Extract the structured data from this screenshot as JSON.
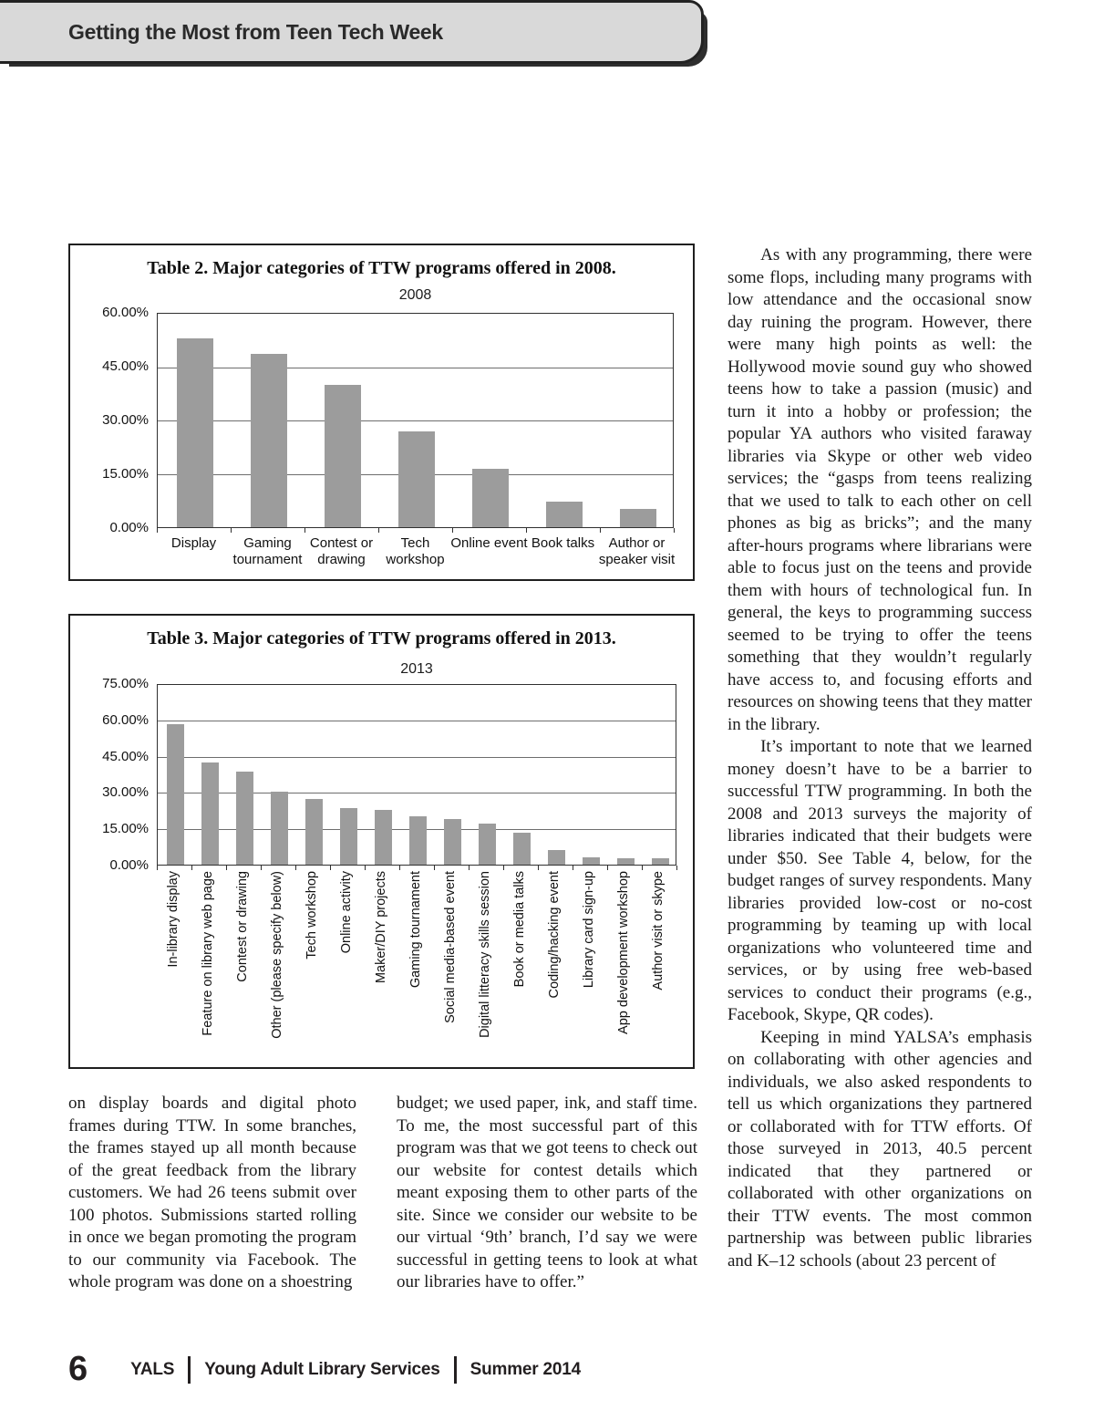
{
  "header": {
    "title": "Getting the Most from Teen Tech Week"
  },
  "colors": {
    "banner_fill": "#d9d9d9",
    "banner_border": "#222222",
    "bar_fill": "#9c9c9c",
    "text": "#1b1b1b"
  },
  "chart_data": [
    {
      "type": "bar",
      "caption": "Table 2. Major categories of TTW programs offered in 2008.",
      "title": "2008",
      "categories": [
        "Display",
        "Gaming tournament",
        "Contest or drawing",
        "Tech workshop",
        "Online event",
        "Book talks",
        "Author or speaker visit"
      ],
      "values": [
        53,
        48.8,
        40,
        27,
        16.4,
        7.2,
        5
      ],
      "ylim": [
        0,
        60
      ],
      "ytick_step": 15,
      "ytick_format": "0.00%",
      "grid": true,
      "legend": false,
      "bar_color": "#9c9c9c",
      "xlabel": "",
      "ylabel": ""
    },
    {
      "type": "bar",
      "caption": "Table 3. Major categories of TTW programs offered in 2013.",
      "title": "2013",
      "categories": [
        "In-library display",
        "Feature on library web page",
        "Contest or drawing",
        "Other (please specify below)",
        "Tech workshop",
        "Online activity",
        "Maker/DIY projects",
        "Gaming tournament",
        "Social media-based event",
        "Digital litteracy skills session",
        "Book or media talks",
        "Coding/hacking event",
        "Library card sign-up",
        "App development workshop",
        "Author visit or skype"
      ],
      "values": [
        58.5,
        42.5,
        39,
        30.5,
        27.5,
        23.5,
        23,
        20,
        19,
        17,
        13.5,
        6,
        3,
        2.5,
        2.5
      ],
      "ylim": [
        0,
        75
      ],
      "ytick_step": 15,
      "ytick_format": "0.00%",
      "grid": true,
      "legend": false,
      "bar_color": "#9c9c9c",
      "xlabel": "",
      "ylabel": ""
    }
  ],
  "article": {
    "left_column": [
      "on display boards and digital photo frames during TTW. In some branches, the frames stayed up all month because of the great feedback from the library customers. We had 26 teens submit over 100 photos. Submissions started rolling in once we began promoting the program to our community via Facebook. The whole program was done on a shoestring"
    ],
    "middle_column": [
      "budget; we used paper, ink, and staff time. To me, the most successful part of this program was that we got teens to check out our website for contest details which meant exposing them to other parts of the site. Since we consider our website to be our virtual ‘9th’ branch, I’d say we were successful in getting teens to look at what our libraries have to offer.”"
    ],
    "right_column": [
      "As with any programming, there were some flops, including many programs with low attendance and the occasional snow day ruining the program. However, there were many high points as well: the Hollywood movie sound guy who showed teens how to take a passion (music) and turn it into a hobby or profession; the popular YA authors who visited faraway libraries via Skype or other web video services; the “gasps from teens realizing that we used to talk to each other on cell phones as big as bricks”; and the many after-hours programs where librarians were able to focus just on the teens and provide them with hours of technological fun. In general, the keys to programming success seemed to be trying to offer the teens something that they wouldn’t regularly have access to, and focusing efforts and resources on showing teens that they matter in the library.",
      "It’s important to note that we learned money doesn’t have to be a barrier to successful TTW programming. In both the 2008 and 2013 surveys the majority of libraries indicated that their budgets were under $50. See Table 4, below, for the budget ranges of survey respondents. Many libraries provided low-cost or no-cost programming by teaming up with local organizations who volunteered time and services, or by using free web-based services to conduct their programs (e.g., Facebook, Skype, QR codes).",
      "Keeping in mind YALSA’s emphasis on collaborating with other agencies and individuals, we also asked respondents to tell us which organizations they partnered or collaborated with for TTW efforts. Of those surveyed in 2013, 40.5 percent indicated that they partnered or collaborated with other organizations on their TTW events. The most common partnership was between public libraries and K–12 schools (about 23 percent of"
    ]
  },
  "footer": {
    "page_number": "6",
    "journal_abbr": "YALS",
    "journal_title": "Young Adult Library Services",
    "issue": "Summer 2014"
  }
}
